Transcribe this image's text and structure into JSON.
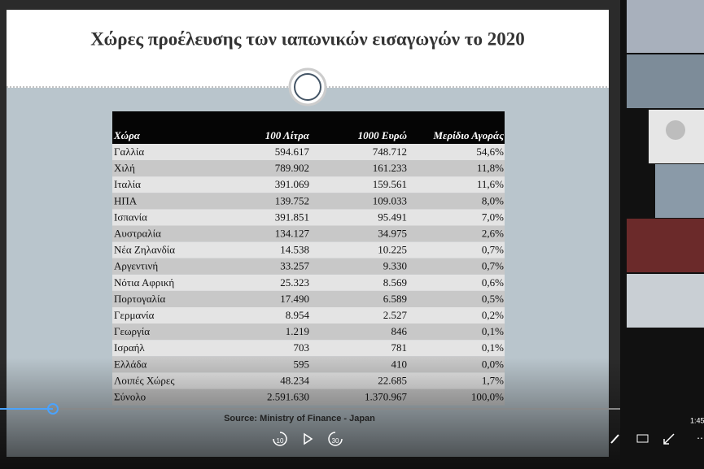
{
  "slide": {
    "title": "Χώρες προέλευσης των ιαπωνικών εισαγωγών το 2020",
    "table": {
      "header": [
        "Χώρα",
        "100 Λίτρα",
        "1000 Ευρώ",
        "Μερίδιο Αγοράς"
      ],
      "rows": [
        [
          "Γαλλία",
          "594.617",
          "748.712",
          "54,6%"
        ],
        [
          "Χιλή",
          "789.902",
          "161.233",
          "11,8%"
        ],
        [
          "Ιταλία",
          "391.069",
          "159.561",
          "11,6%"
        ],
        [
          "ΗΠΑ",
          "139.752",
          "109.033",
          "8,0%"
        ],
        [
          "Ισπανία",
          "391.851",
          "95.491",
          "7,0%"
        ],
        [
          "Αυστραλία",
          "134.127",
          "34.975",
          "2,6%"
        ],
        [
          "Νέα Ζηλανδία",
          "14.538",
          "10.225",
          "0,7%"
        ],
        [
          "Αργεντινή",
          "33.257",
          "9.330",
          "0,7%"
        ],
        [
          "Νότια Αφρική",
          "25.323",
          "8.569",
          "0,6%"
        ],
        [
          "Πορτογαλία",
          "17.490",
          "6.589",
          "0,5%"
        ],
        [
          "Γερμανία",
          "8.954",
          "2.527",
          "0,2%"
        ],
        [
          "Γεωργία",
          "1.219",
          "846",
          "0,1%"
        ],
        [
          "Ισραήλ",
          "703",
          "781",
          "0,1%"
        ],
        [
          "Ελλάδα",
          "595",
          "410",
          "0,0%"
        ],
        [
          "Λοιπές Χώρες",
          "48.234",
          "22.685",
          "1,7%"
        ],
        [
          "Σύνολο",
          "2.591.630",
          "1.370.967",
          "100,0%"
        ]
      ]
    },
    "source": "Source:  Ministry of Finance  - Japan"
  },
  "player": {
    "rewind": "10",
    "forward": "30",
    "time": "1:45"
  }
}
